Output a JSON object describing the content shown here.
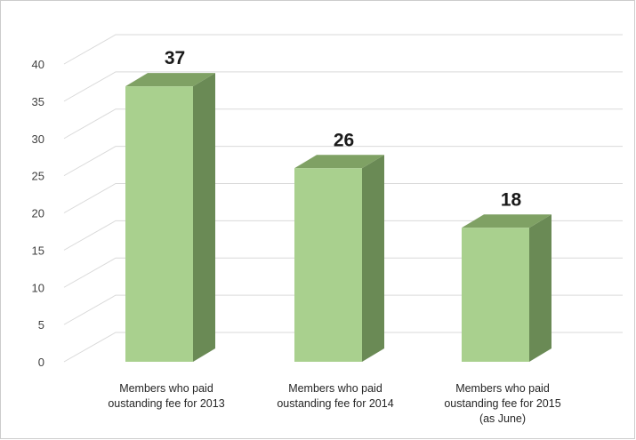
{
  "chart_data": {
    "type": "bar",
    "style": "3d-column",
    "categories": [
      [
        "Members who paid",
        "oustanding fee for 2013"
      ],
      [
        "Members who paid",
        "oustanding fee for 2014"
      ],
      [
        "Members who paid",
        "oustanding fee for 2015",
        "(as June)"
      ]
    ],
    "values": [
      37,
      26,
      18
    ],
    "data_labels": [
      "37",
      "26",
      "18"
    ],
    "yticks": [
      "0",
      "5",
      "10",
      "15",
      "20",
      "25",
      "30",
      "35",
      "40"
    ],
    "ylim": [
      0,
      40
    ],
    "grid": true,
    "legend": "none",
    "colors": {
      "front": "#a9d08e",
      "side": "#6a8a55",
      "top": "#7fa164",
      "grid": "#d9d9d9",
      "frame": "#cccccc"
    }
  }
}
